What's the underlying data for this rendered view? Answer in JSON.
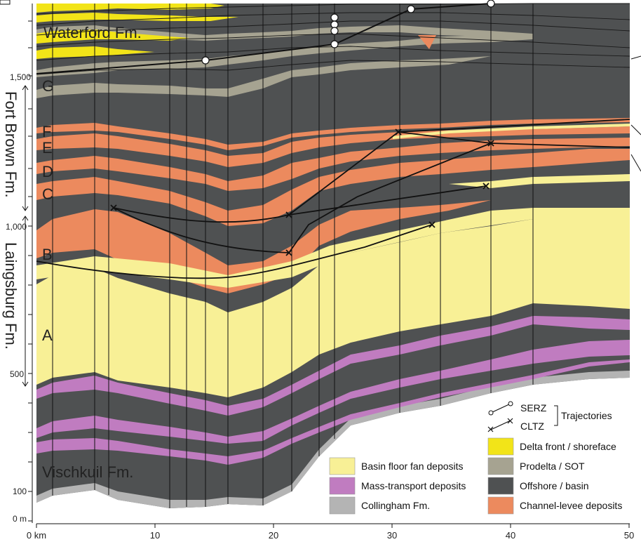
{
  "formations": {
    "waterford": "Waterford Fm.",
    "fort_brown": "Fort Brown Fm.",
    "laingsburg": "Laingsburg Fm.",
    "vischkuil": "Vischkuil Fm."
  },
  "units": [
    "G",
    "F",
    "E",
    "D",
    "C",
    "B",
    "A"
  ],
  "y_axis": {
    "ticks": [
      "1,500",
      "1,000",
      "500",
      "100",
      "0 m"
    ]
  },
  "x_axis": {
    "ticks": [
      "0 km",
      "10",
      "20",
      "30",
      "40",
      "50"
    ]
  },
  "legend": {
    "basin_floor": "Basin floor fan deposits",
    "mass_transport": "Mass-transport deposits",
    "collingham": "Collingham Fm.",
    "delta_front": "Delta front / shoreface",
    "prodelta": "Prodelta / SOT",
    "offshore": "Offshore / basin",
    "channel_levee": "Channel-levee deposits",
    "serz": "SERZ",
    "cltz": "CLTZ",
    "trajectories": "Trajectories"
  },
  "colors": {
    "basin_floor": "#f8f096",
    "mass_transport": "#c07cc0",
    "collingham": "#b4b4b4",
    "delta_front": "#f2e418",
    "prodelta": "#a6a391",
    "offshore": "#4f5152",
    "channel_levee": "#ec8a5e"
  }
}
